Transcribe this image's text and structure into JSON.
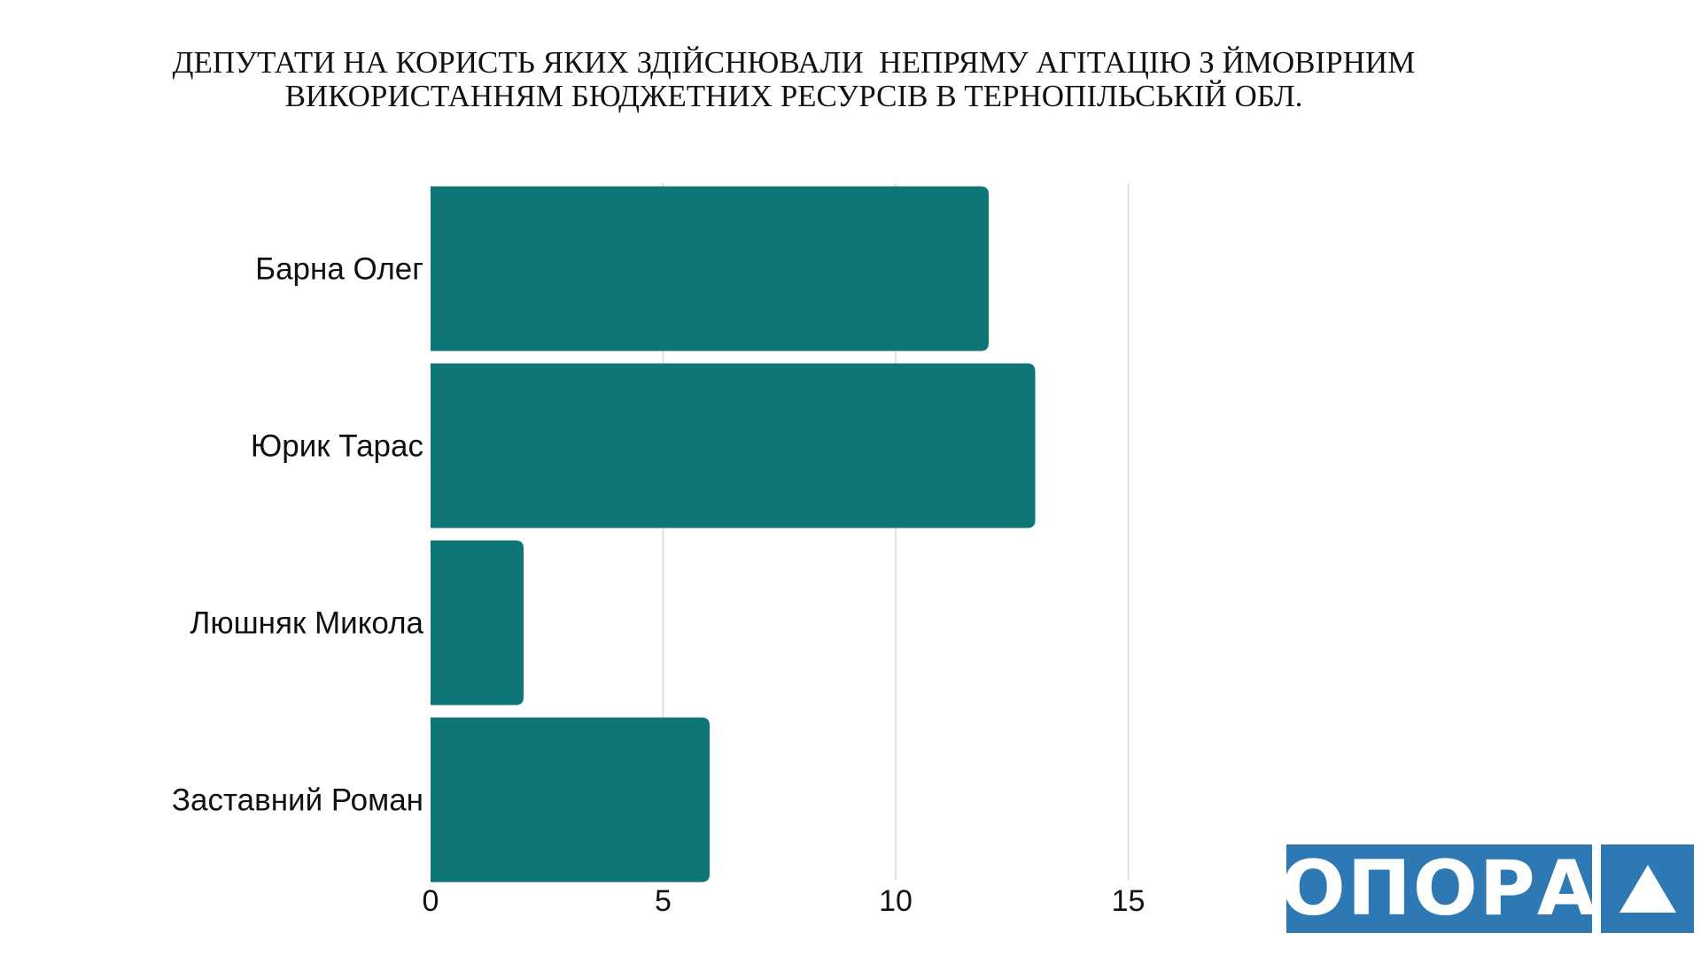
{
  "chart_data": {
    "type": "bar",
    "orientation": "horizontal",
    "title_lines": [
      "ДЕПУТАТИ НА КОРИСТЬ ЯКИХ ЗДІЙСНЮВАЛИ  НЕПРЯМУ АГІТАЦІЮ З ЙМОВІРНИМ",
      "ВИКОРИСТАННЯМ БЮДЖЕТНИХ РЕСУРСІВ В ТЕРНОПІЛЬСЬКІЙ ОБЛ."
    ],
    "categories": [
      "Барна Олег",
      "Юрик Тарас",
      "Люшняк Микола",
      "Заставний Роман"
    ],
    "values": [
      12,
      13,
      2,
      6
    ],
    "xlim": [
      0,
      15
    ],
    "x_ticks": [
      "0",
      "5",
      "10",
      "15"
    ],
    "xlabel": "",
    "ylabel": "",
    "grid": true,
    "legend": "none",
    "bar_color": "#0e7676",
    "grid_color": "#d9d9d9"
  },
  "logo": {
    "text": "ОПОРА",
    "icon": "triangle-icon",
    "color": "#2e78b3"
  }
}
